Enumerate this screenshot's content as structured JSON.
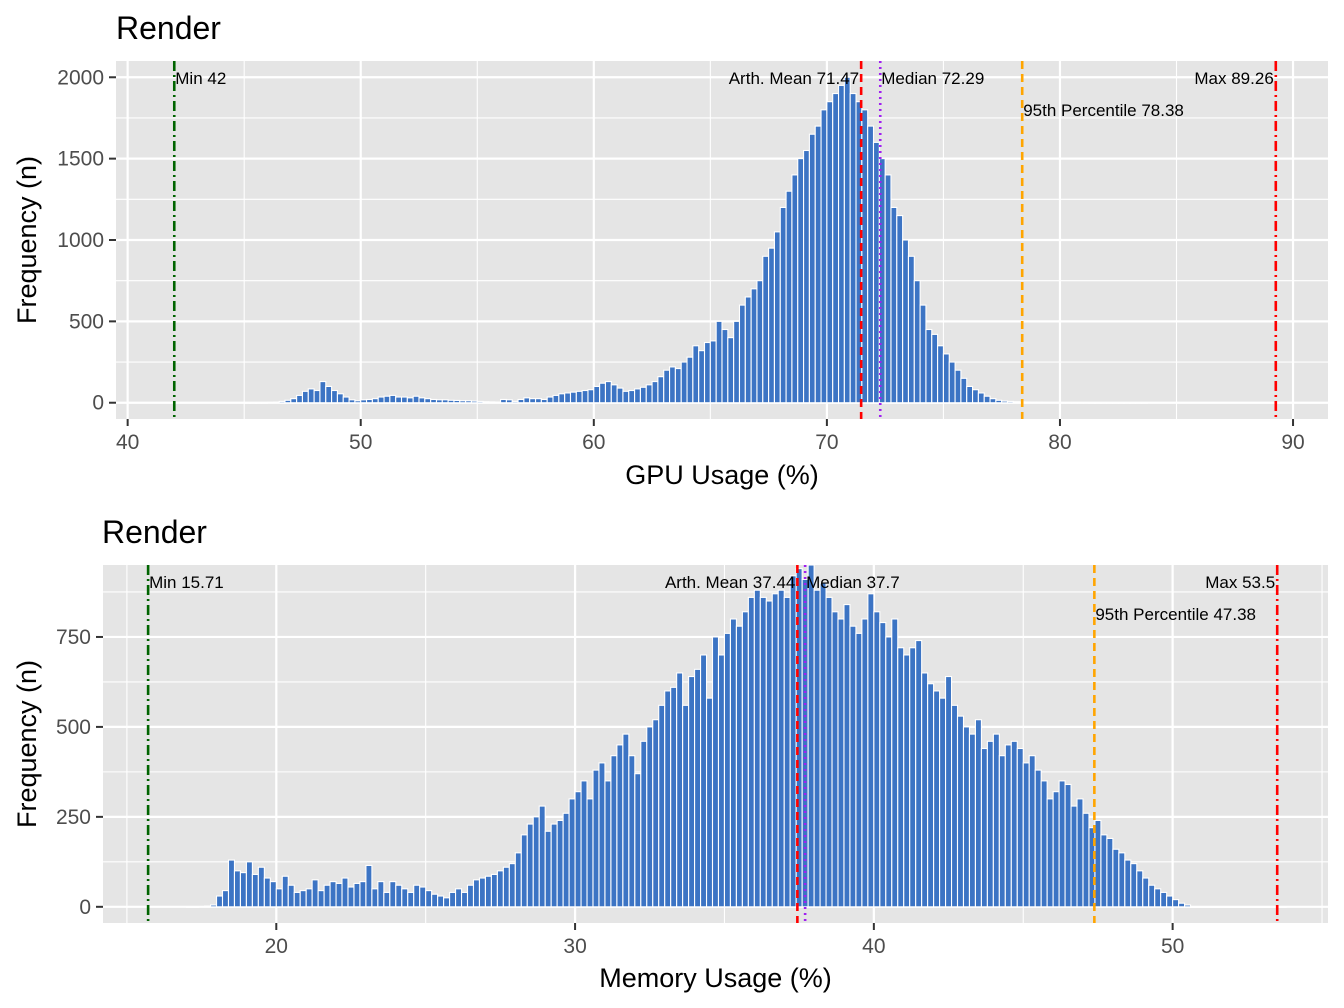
{
  "chart_data": [
    {
      "type": "bar",
      "title": "Render",
      "xlabel": "GPU Usage (%)",
      "ylabel": "Frequency (n)",
      "xlim": [
        39.5,
        91.5
      ],
      "ylim": [
        -100,
        2100
      ],
      "xticks": [
        40,
        50,
        60,
        70,
        80,
        90
      ],
      "yticks": [
        0,
        500,
        1000,
        1500,
        2000
      ],
      "bar_color": "#3C74C4",
      "panel_background": "#E5E5E5",
      "bins": {
        "start": 45.0,
        "width": 0.25,
        "values": [
          0,
          0,
          0,
          0,
          2,
          4,
          8,
          15,
          25,
          45,
          70,
          85,
          75,
          130,
          100,
          75,
          55,
          35,
          18,
          12,
          18,
          20,
          25,
          35,
          40,
          45,
          35,
          35,
          30,
          40,
          30,
          25,
          20,
          18,
          18,
          15,
          14,
          12,
          12,
          10,
          8,
          6,
          5,
          4,
          20,
          18,
          8,
          20,
          30,
          25,
          25,
          20,
          35,
          45,
          55,
          60,
          65,
          70,
          75,
          80,
          100,
          120,
          130,
          110,
          90,
          70,
          75,
          85,
          95,
          110,
          130,
          160,
          200,
          220,
          210,
          250,
          280,
          350,
          320,
          370,
          380,
          500,
          450,
          400,
          500,
          600,
          650,
          700,
          750,
          900,
          950,
          1050,
          1200,
          1300,
          1400,
          1500,
          1550,
          1650,
          1700,
          1800,
          1850,
          1900,
          1950,
          2000,
          1900,
          1850,
          1800,
          1700,
          1600,
          1500,
          1400,
          1200,
          1150,
          1000,
          900,
          750,
          600,
          450,
          420,
          350,
          300,
          250,
          200,
          150,
          100,
          80,
          60,
          40,
          25,
          15,
          10,
          8,
          6,
          5,
          4,
          3,
          3,
          2,
          2,
          2,
          1,
          1,
          1,
          1,
          1,
          0,
          0,
          0,
          0,
          0,
          0,
          0,
          0,
          0,
          0
        ]
      },
      "reference_lines": [
        {
          "label": "Min 42",
          "value": 42,
          "color": "#006400",
          "style": "dotdash",
          "label_side": "right",
          "label_row": 1
        },
        {
          "label": "Arth. Mean 71.47",
          "value": 71.47,
          "color": "#FF0000",
          "style": "dashed",
          "label_side": "left",
          "label_row": 1
        },
        {
          "label": "Median 72.29",
          "value": 72.29,
          "color": "#A020F0",
          "style": "dotted",
          "label_side": "right",
          "label_row": 1
        },
        {
          "label": "95th Percentile 78.38",
          "value": 78.38,
          "color": "#FFA500",
          "style": "dashed",
          "label_side": "right",
          "label_row": 2
        },
        {
          "label": "Max 89.26",
          "value": 89.26,
          "color": "#FF0000",
          "style": "dotdash",
          "label_side": "left",
          "label_row": 1
        }
      ]
    },
    {
      "type": "bar",
      "title": "Render",
      "xlabel": "Memory Usage (%)",
      "ylabel": "Frequency (n)",
      "xlim": [
        14.2,
        55.2
      ],
      "ylim": [
        -45,
        950
      ],
      "xticks": [
        20,
        30,
        40,
        50
      ],
      "yticks": [
        0,
        250,
        500,
        750
      ],
      "bar_color": "#3C74C4",
      "panel_background": "#E5E5E5",
      "bins": {
        "start": 17.0,
        "width": 0.2,
        "values": [
          0,
          0,
          1,
          2,
          5,
          30,
          45,
          130,
          100,
          95,
          125,
          90,
          110,
          80,
          70,
          50,
          85,
          60,
          40,
          45,
          50,
          75,
          45,
          60,
          70,
          65,
          80,
          55,
          65,
          70,
          115,
          50,
          70,
          40,
          70,
          60,
          50,
          40,
          60,
          55,
          45,
          35,
          30,
          25,
          40,
          50,
          40,
          60,
          75,
          80,
          85,
          90,
          100,
          110,
          120,
          150,
          200,
          230,
          250,
          280,
          210,
          230,
          240,
          260,
          300,
          320,
          350,
          300,
          380,
          400,
          350,
          420,
          450,
          480,
          420,
          370,
          460,
          500,
          520,
          560,
          600,
          610,
          650,
          560,
          640,
          660,
          700,
          580,
          750,
          700,
          760,
          800,
          780,
          820,
          860,
          880,
          860,
          850,
          870,
          880,
          860,
          920,
          940,
          910,
          950,
          880,
          900,
          860,
          820,
          800,
          840,
          780,
          760,
          800,
          870,
          820,
          790,
          750,
          800,
          720,
          700,
          720,
          740,
          650,
          620,
          600,
          580,
          640,
          560,
          530,
          500,
          480,
          520,
          440,
          460,
          480,
          420,
          450,
          460,
          440,
          400,
          420,
          380,
          350,
          300,
          320,
          350,
          340,
          280,
          300,
          260,
          220,
          240,
          200,
          190,
          160,
          150,
          130,
          120,
          100,
          80,
          60,
          50,
          40,
          30,
          20,
          10,
          5,
          0,
          0,
          0,
          0,
          0,
          0,
          0,
          0,
          0,
          0,
          0,
          0,
          0,
          0,
          0,
          0
        ]
      },
      "reference_lines": [
        {
          "label": "Min 15.71",
          "value": 15.71,
          "color": "#006400",
          "style": "dotdash",
          "label_side": "right",
          "label_row": 1
        },
        {
          "label": "Arth. Mean 37.44",
          "value": 37.44,
          "color": "#FF0000",
          "style": "dashed",
          "label_side": "left",
          "label_row": 1
        },
        {
          "label": "Median 37.7",
          "value": 37.7,
          "color": "#A020F0",
          "style": "dotted",
          "label_side": "right",
          "label_row": 1
        },
        {
          "label": "95th Percentile 47.38",
          "value": 47.38,
          "color": "#FFA500",
          "style": "dashed",
          "label_side": "right",
          "label_row": 2
        },
        {
          "label": "Max 53.5",
          "value": 53.5,
          "color": "#FF0000",
          "style": "dotdash",
          "label_side": "left",
          "label_row": 1
        }
      ]
    }
  ]
}
